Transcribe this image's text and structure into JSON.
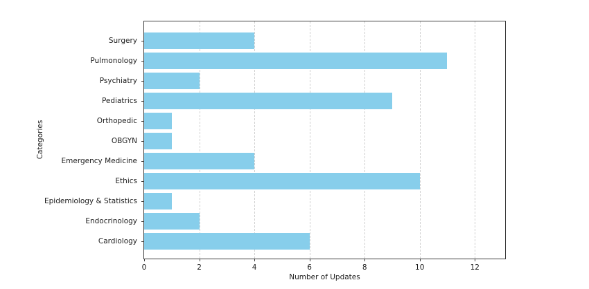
{
  "chart_data": {
    "type": "bar",
    "orientation": "horizontal",
    "title": "",
    "xlabel": "Number of Updates",
    "ylabel": "Categories",
    "categories": [
      "Surgery",
      "Pulmonology",
      "Psychiatry",
      "Pediatrics",
      "Orthopedic",
      "OBGYN",
      "Emergency Medicine",
      "Ethics",
      "Epidemiology & Statistics",
      "Endocrinology",
      "Cardiology"
    ],
    "values": [
      4,
      11,
      2,
      9,
      1,
      1,
      4,
      10,
      1,
      2,
      6
    ],
    "xlim": [
      0,
      13.1
    ],
    "xticks": [
      0,
      2,
      4,
      6,
      8,
      10,
      12
    ],
    "grid": "vertical-dashed",
    "legend": null,
    "colors": {
      "bar": "#87CEEB",
      "grid": "#cfcfcf",
      "spine": "#3d3d3d",
      "text": "#1c1c1c",
      "background": "#ffffff"
    }
  }
}
